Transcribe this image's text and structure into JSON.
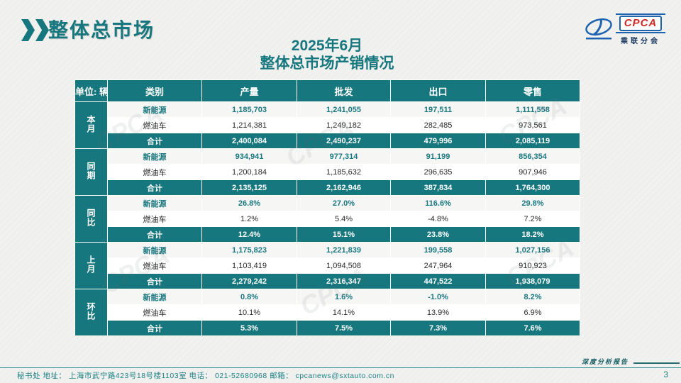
{
  "header": {
    "title": "整体总市场"
  },
  "logo": {
    "name": "CPCA",
    "cn": "乘联分会"
  },
  "subtitle": {
    "line1": "2025年6月",
    "line2": "整体总市场产销情况"
  },
  "watermark": {
    "text": "CPCA"
  },
  "table": {
    "unit_label": "单位: 辆",
    "columns": [
      "类别",
      "产量",
      "批发",
      "出口",
      "零售"
    ],
    "groups": [
      {
        "label": "本月",
        "rows": [
          {
            "type": "nev",
            "category": "新能源",
            "values": [
              "1,185,703",
              "1,241,055",
              "197,511",
              "1,111,558"
            ]
          },
          {
            "type": "fuel",
            "category": "燃油车",
            "values": [
              "1,214,381",
              "1,249,182",
              "282,485",
              "973,561"
            ]
          },
          {
            "type": "total",
            "category": "合计",
            "values": [
              "2,400,084",
              "2,490,237",
              "479,996",
              "2,085,119"
            ]
          }
        ]
      },
      {
        "label": "同期",
        "rows": [
          {
            "type": "nev",
            "category": "新能源",
            "values": [
              "934,941",
              "977,314",
              "91,199",
              "856,354"
            ]
          },
          {
            "type": "fuel",
            "category": "燃油车",
            "values": [
              "1,200,184",
              "1,185,632",
              "296,635",
              "907,946"
            ]
          },
          {
            "type": "total",
            "category": "合计",
            "values": [
              "2,135,125",
              "2,162,946",
              "387,834",
              "1,764,300"
            ]
          }
        ]
      },
      {
        "label": "同比",
        "rows": [
          {
            "type": "nev",
            "category": "新能源",
            "values": [
              "26.8%",
              "27.0%",
              "116.6%",
              "29.8%"
            ]
          },
          {
            "type": "fuel",
            "category": "燃油车",
            "values": [
              "1.2%",
              "5.4%",
              "-4.8%",
              "7.2%"
            ]
          },
          {
            "type": "total",
            "category": "合计",
            "values": [
              "12.4%",
              "15.1%",
              "23.8%",
              "18.2%"
            ]
          }
        ]
      },
      {
        "label": "上月",
        "rows": [
          {
            "type": "nev",
            "category": "新能源",
            "values": [
              "1,175,823",
              "1,221,839",
              "199,558",
              "1,027,156"
            ]
          },
          {
            "type": "fuel",
            "category": "燃油车",
            "values": [
              "1,103,419",
              "1,094,508",
              "247,964",
              "910,923"
            ]
          },
          {
            "type": "total",
            "category": "合计",
            "values": [
              "2,279,242",
              "2,316,347",
              "447,522",
              "1,938,079"
            ]
          }
        ]
      },
      {
        "label": "环比",
        "rows": [
          {
            "type": "nev",
            "category": "新能源",
            "values": [
              "0.8%",
              "1.6%",
              "-1.0%",
              "8.2%"
            ]
          },
          {
            "type": "fuel",
            "category": "燃油车",
            "values": [
              "10.1%",
              "14.1%",
              "13.9%",
              "6.9%"
            ]
          },
          {
            "type": "total",
            "category": "合计",
            "values": [
              "5.3%",
              "7.5%",
              "7.3%",
              "7.6%"
            ]
          }
        ]
      }
    ]
  },
  "footer": {
    "info": "秘书处  地址： 上海市武宁路423号18号楼1103室  电话： 021-52680968   邮箱： cpcanews@sxtauto.com.cn",
    "report_label": "深度分析报告",
    "page_number": "3"
  },
  "colors": {
    "teal": "#17777e",
    "nev_text": "#1a7880",
    "logo_blue": "#1e63b0",
    "logo_red": "#cf2a24"
  }
}
